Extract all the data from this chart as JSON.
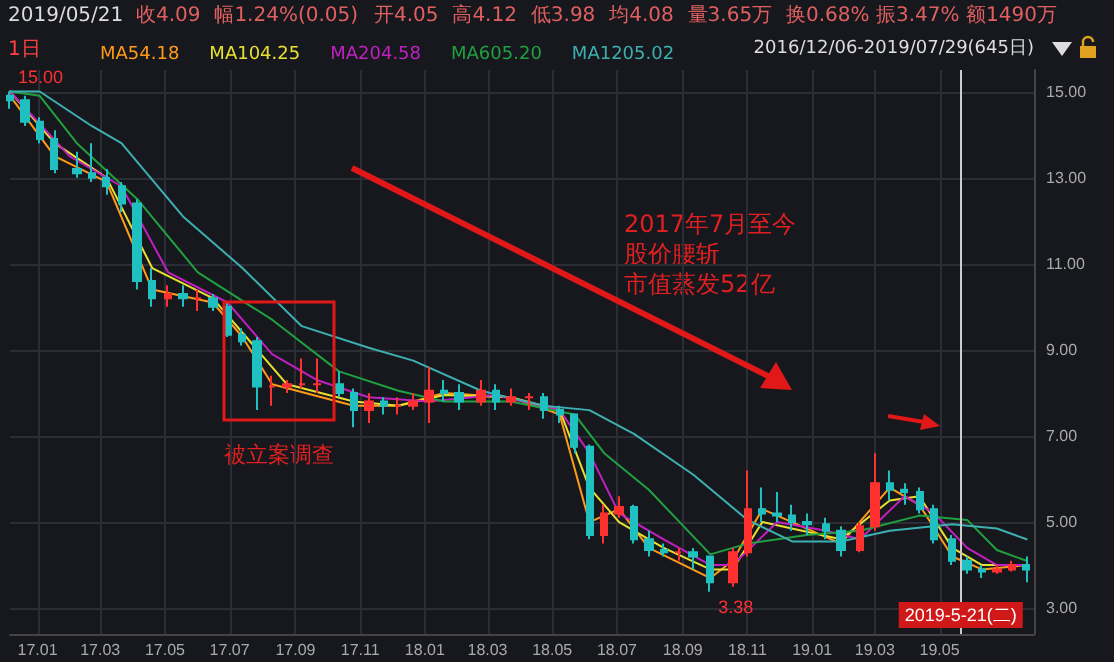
{
  "chart_data": {
    "type": "candlestick",
    "x": [
      "2016-12-06",
      "2016-12-20",
      "2017-01-03",
      "2017-01-17",
      "2017-02-07",
      "2017-02-21",
      "2017-03-07",
      "2017-03-21",
      "2017-04-05",
      "2017-04-19",
      "2017-05-04",
      "2017-05-18",
      "2017-06-01",
      "2017-06-15",
      "2017-06-29",
      "2017-07-13",
      "2017-07-27",
      "2017-08-10",
      "2017-08-24",
      "2017-09-07",
      "2017-09-21",
      "2017-10-12",
      "2017-10-26",
      "2017-11-09",
      "2017-11-23",
      "2017-12-07",
      "2017-12-21",
      "2018-01-05",
      "2018-01-19",
      "2018-02-02",
      "2018-02-23",
      "2018-03-09",
      "2018-03-23",
      "2018-04-09",
      "2018-04-23",
      "2018-05-08",
      "2018-05-22",
      "2018-06-05",
      "2018-06-19",
      "2018-07-03",
      "2018-07-17",
      "2018-07-31",
      "2018-08-14",
      "2018-08-28",
      "2018-09-11",
      "2018-09-27",
      "2018-10-18",
      "2018-11-01",
      "2018-11-15",
      "2018-11-29",
      "2018-12-13",
      "2018-12-27",
      "2019-01-14",
      "2019-01-28",
      "2019-02-15",
      "2019-03-01",
      "2019-03-15",
      "2019-03-29",
      "2019-04-12",
      "2019-04-26",
      "2019-05-13",
      "2019-05-27",
      "2019-06-10",
      "2019-06-24",
      "2019-07-08",
      "2019-07-22"
    ],
    "ohlc": [
      [
        14.9,
        15.0,
        14.6,
        14.8
      ],
      [
        14.8,
        14.9,
        14.2,
        14.3
      ],
      [
        14.3,
        14.4,
        13.8,
        13.9
      ],
      [
        13.9,
        14.1,
        13.1,
        13.2
      ],
      [
        13.2,
        13.6,
        13.0,
        13.1
      ],
      [
        13.1,
        13.8,
        12.9,
        13.0
      ],
      [
        13.0,
        13.2,
        12.6,
        12.8
      ],
      [
        12.8,
        12.9,
        12.2,
        12.4
      ],
      [
        12.4,
        12.5,
        10.4,
        10.6
      ],
      [
        10.6,
        10.9,
        10.0,
        10.2
      ],
      [
        10.2,
        10.5,
        10.0,
        10.3
      ],
      [
        10.3,
        10.5,
        10.0,
        10.2
      ],
      [
        10.2,
        10.4,
        9.9,
        10.2
      ],
      [
        10.2,
        10.3,
        9.9,
        10.0
      ],
      [
        10.0,
        10.1,
        9.3,
        9.35
      ],
      [
        9.35,
        9.5,
        9.1,
        9.2
      ],
      [
        9.2,
        9.3,
        7.6,
        8.15
      ],
      [
        8.15,
        8.4,
        7.7,
        8.15
      ],
      [
        8.15,
        8.3,
        8.0,
        8.2
      ],
      [
        8.2,
        8.8,
        8.1,
        8.2
      ],
      [
        8.2,
        8.8,
        8.0,
        8.2
      ],
      [
        8.2,
        8.5,
        7.9,
        8.0
      ],
      [
        8.0,
        8.1,
        7.2,
        7.6
      ],
      [
        7.6,
        8.0,
        7.3,
        7.8
      ],
      [
        7.8,
        7.9,
        7.5,
        7.7
      ],
      [
        7.7,
        7.9,
        7.5,
        7.7
      ],
      [
        7.7,
        8.0,
        7.6,
        7.8
      ],
      [
        7.8,
        8.6,
        7.3,
        8.05
      ],
      [
        8.05,
        8.3,
        7.8,
        8.0
      ],
      [
        8.0,
        8.2,
        7.6,
        7.8
      ],
      [
        7.8,
        8.3,
        7.7,
        8.05
      ],
      [
        8.05,
        8.2,
        7.6,
        7.8
      ],
      [
        7.8,
        8.1,
        7.7,
        7.9
      ],
      [
        7.9,
        8.0,
        7.6,
        7.9
      ],
      [
        7.9,
        8.0,
        7.4,
        7.6
      ],
      [
        7.6,
        7.7,
        7.3,
        7.5
      ],
      [
        7.5,
        7.5,
        6.6,
        6.75
      ],
      [
        6.75,
        6.8,
        4.6,
        4.7
      ],
      [
        4.7,
        5.4,
        4.5,
        5.2
      ],
      [
        5.2,
        5.6,
        5.1,
        5.35
      ],
      [
        5.35,
        5.4,
        4.5,
        4.6
      ],
      [
        4.6,
        4.8,
        4.2,
        4.35
      ],
      [
        4.35,
        4.5,
        4.2,
        4.3
      ],
      [
        4.3,
        4.4,
        4.1,
        4.3
      ],
      [
        4.3,
        4.4,
        3.9,
        4.2
      ],
      [
        4.2,
        4.2,
        3.38,
        3.6
      ],
      [
        3.6,
        4.4,
        3.5,
        4.3
      ],
      [
        4.3,
        6.2,
        4.2,
        5.3
      ],
      [
        5.3,
        5.8,
        5.0,
        5.2
      ],
      [
        5.2,
        5.7,
        5.0,
        5.15
      ],
      [
        5.15,
        5.4,
        4.8,
        5.0
      ],
      [
        5.0,
        5.2,
        4.7,
        4.95
      ],
      [
        4.95,
        5.1,
        4.6,
        4.8
      ],
      [
        4.8,
        4.9,
        4.2,
        4.35
      ],
      [
        4.35,
        5.0,
        4.3,
        4.9
      ],
      [
        4.9,
        6.6,
        4.8,
        5.9
      ],
      [
        5.9,
        6.2,
        5.5,
        5.75
      ],
      [
        5.75,
        5.9,
        5.4,
        5.7
      ],
      [
        5.7,
        5.8,
        5.2,
        5.3
      ],
      [
        5.3,
        5.4,
        4.5,
        4.6
      ],
      [
        4.6,
        4.7,
        4.0,
        4.1
      ],
      [
        4.1,
        4.2,
        3.8,
        3.9
      ],
      [
        3.9,
        4.0,
        3.7,
        3.85
      ],
      [
        3.85,
        4.0,
        3.8,
        3.9
      ],
      [
        3.9,
        4.1,
        3.85,
        4.0
      ],
      [
        4.0,
        4.2,
        3.6,
        3.9
      ]
    ],
    "series": [
      {
        "name": "MA54.18",
        "type": "line",
        "color": "#ff9a1a",
        "x": [
          "2016-12-06",
          "2017-01-17",
          "2017-03-07",
          "2017-04-19",
          "2017-06-15",
          "2017-07-13",
          "2017-08-10",
          "2017-10-26",
          "2017-12-07",
          "2018-01-19",
          "2018-03-23",
          "2018-05-08",
          "2018-06-05",
          "2018-07-03",
          "2018-07-31",
          "2018-09-27",
          "2018-10-18",
          "2018-11-15",
          "2019-01-28",
          "2019-03-15",
          "2019-04-12",
          "2019-05-13",
          "2019-06-10",
          "2019-07-22"
        ],
        "values": [
          14.9,
          13.5,
          12.9,
          10.4,
          10.1,
          9.3,
          8.2,
          7.7,
          7.7,
          8.0,
          7.9,
          7.5,
          5.0,
          5.3,
          4.4,
          3.7,
          4.1,
          5.3,
          4.5,
          5.8,
          5.4,
          4.2,
          3.9,
          4.0
        ]
      },
      {
        "name": "MA104.25",
        "type": "line",
        "color": "#e8e030",
        "x": [
          "2016-12-06",
          "2017-01-17",
          "2017-03-07",
          "2017-04-19",
          "2017-06-15",
          "2017-07-27",
          "2017-08-24",
          "2017-10-26",
          "2017-12-07",
          "2018-01-19",
          "2018-03-23",
          "2018-05-08",
          "2018-06-05",
          "2018-07-03",
          "2018-08-14",
          "2018-09-27",
          "2018-10-18",
          "2018-11-15",
          "2019-01-28",
          "2019-03-15",
          "2019-04-12",
          "2019-05-13",
          "2019-06-10",
          "2019-07-22"
        ],
        "values": [
          15.0,
          13.8,
          13.0,
          10.9,
          10.2,
          9.0,
          8.2,
          7.8,
          7.7,
          7.95,
          7.9,
          7.6,
          5.8,
          5.0,
          4.4,
          3.9,
          3.9,
          5.0,
          4.6,
          5.5,
          5.6,
          4.4,
          4.0,
          4.0
        ]
      },
      {
        "name": "MA204.58",
        "type": "line",
        "color": "#c020c0",
        "x": [
          "2016-12-06",
          "2017-01-31",
          "2017-03-21",
          "2017-05-04",
          "2017-06-29",
          "2017-08-10",
          "2017-09-21",
          "2017-11-09",
          "2018-01-05",
          "2018-03-09",
          "2018-05-08",
          "2018-06-05",
          "2018-07-03",
          "2018-08-14",
          "2018-09-27",
          "2018-10-18",
          "2018-11-29",
          "2019-01-14",
          "2019-02-15",
          "2019-03-29",
          "2019-04-26",
          "2019-05-27",
          "2019-06-24",
          "2019-07-22"
        ],
        "values": [
          15.0,
          13.5,
          12.8,
          10.8,
          10.1,
          8.9,
          8.3,
          7.9,
          7.8,
          7.95,
          7.6,
          6.6,
          5.2,
          4.6,
          4.0,
          4.0,
          5.0,
          4.8,
          4.6,
          5.6,
          5.2,
          4.4,
          4.0,
          4.0
        ]
      },
      {
        "name": "MA605.20",
        "type": "line",
        "color": "#20a040",
        "x": [
          "2016-12-06",
          "2017-01-03",
          "2017-02-07",
          "2017-04-05",
          "2017-06-01",
          "2017-08-10",
          "2017-10-12",
          "2017-12-07",
          "2018-01-19",
          "2018-03-23",
          "2018-05-22",
          "2018-06-19",
          "2018-07-31",
          "2018-09-27",
          "2018-11-01",
          "2018-12-27",
          "2019-02-15",
          "2019-04-12",
          "2019-05-27",
          "2019-06-24",
          "2019-07-22"
        ],
        "values": [
          15.0,
          14.9,
          13.8,
          12.5,
          10.8,
          9.7,
          8.5,
          8.05,
          7.8,
          7.8,
          7.5,
          6.6,
          5.75,
          4.25,
          4.5,
          4.7,
          4.8,
          5.15,
          5.05,
          4.35,
          4.1
        ]
      },
      {
        "name": "MA1205.02",
        "type": "line",
        "color": "#3cb0b0",
        "x": [
          "2016-12-06",
          "2017-01-03",
          "2017-02-21",
          "2017-03-21",
          "2017-05-18",
          "2017-07-13",
          "2017-09-07",
          "2017-11-09",
          "2017-12-21",
          "2018-02-23",
          "2018-04-23",
          "2018-06-05",
          "2018-07-17",
          "2018-09-11",
          "2018-11-01",
          "2018-12-13",
          "2019-01-28",
          "2019-03-15",
          "2019-05-13",
          "2019-06-24",
          "2019-07-22"
        ],
        "values": [
          15.0,
          15.0,
          14.2,
          13.8,
          12.1,
          10.9,
          9.55,
          9.05,
          8.75,
          8.05,
          7.7,
          7.6,
          7.05,
          6.1,
          5.05,
          4.55,
          4.55,
          4.8,
          4.95,
          4.85,
          4.6
        ]
      }
    ],
    "xlim": [
      "2016-12-06",
      "2019-07-29"
    ],
    "xticks": [
      {
        "value": "2017-01-01",
        "label": "17.01"
      },
      {
        "value": "2017-03-01",
        "label": "17.03"
      },
      {
        "value": "2017-05-01",
        "label": "17.05"
      },
      {
        "value": "2017-07-01",
        "label": "17.07"
      },
      {
        "value": "2017-09-01",
        "label": "17.09"
      },
      {
        "value": "2017-11-01",
        "label": "17.11"
      },
      {
        "value": "2018-01-01",
        "label": "18.01"
      },
      {
        "value": "2018-03-01",
        "label": "18.03"
      },
      {
        "value": "2018-05-01",
        "label": "18.05"
      },
      {
        "value": "2018-07-01",
        "label": "18.07"
      },
      {
        "value": "2018-09-01",
        "label": "18.09"
      },
      {
        "value": "2018-11-01",
        "label": "18.11"
      },
      {
        "value": "2019-01-01",
        "label": "19.01"
      },
      {
        "value": "2019-03-01",
        "label": "19.03"
      },
      {
        "value": "2019-05-01",
        "label": "19.05"
      }
    ],
    "ylim": [
      2.4,
      15.5
    ],
    "yticks": [
      {
        "value": 3,
        "label": "3.00"
      },
      {
        "value": 5,
        "label": "5.00"
      },
      {
        "value": 7,
        "label": "7.00"
      },
      {
        "value": 9,
        "label": "9.00"
      },
      {
        "value": 11,
        "label": "11.00"
      },
      {
        "value": 13,
        "label": "13.00"
      },
      {
        "value": 15,
        "label": "15.00"
      }
    ],
    "grid": true,
    "legend": "top left",
    "marker": "none",
    "line_style": "solid",
    "ref_lines": [
      {
        "axis": "x",
        "value": "2019-05-21",
        "label": "2019-5-21(二)"
      }
    ],
    "annotations": [
      "2019/05/21",
      "收4.09",
      "幅1.24%(0.05)",
      "开4.05",
      "高4.12",
      "低3.98",
      "均4.08",
      "量3.65万",
      "换0.68%",
      "振3.47%",
      "额1490万",
      "1日",
      "2016/12/06-2019/07/29(645日)",
      "2017年7月至今",
      "股价腰斩",
      "市值蒸发52亿",
      "被立案调查",
      {
        "text": "15.00",
        "x": "2016-12-06",
        "y": 15.0
      },
      {
        "text": "3.38",
        "x": "2018-09-27",
        "y": 3.38
      }
    ]
  }
}
